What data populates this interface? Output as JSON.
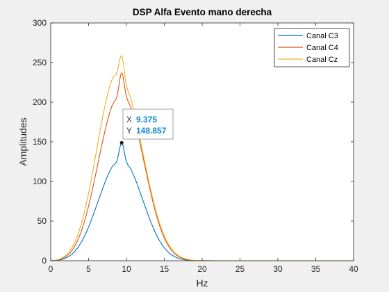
{
  "chart_data": {
    "type": "line",
    "title": "DSP Alfa Evento mano derecha",
    "xlabel": "Hz",
    "ylabel": "Amplitudes",
    "xlim": [
      0,
      40
    ],
    "ylim": [
      0,
      300
    ],
    "xticks": [
      0,
      5,
      10,
      15,
      20,
      25,
      30,
      35,
      40
    ],
    "yticks": [
      0,
      50,
      100,
      150,
      200,
      250,
      300
    ],
    "grid": false,
    "legend_position": "top-right",
    "x": [
      0,
      0.625,
      1.25,
      1.875,
      2.5,
      3.125,
      3.75,
      4.375,
      5,
      5.625,
      6.25,
      6.875,
      7.5,
      8.125,
      8.75,
      9.375,
      10,
      10.625,
      11.25,
      11.875,
      12.5,
      13.125,
      13.75,
      14.375,
      15,
      15.625,
      16.25,
      16.875,
      17.5,
      18.125,
      18.75,
      19.375,
      20,
      20.625,
      21.25,
      21.875,
      22.5,
      23.125,
      23.75,
      24.375,
      25,
      26.25,
      27.5,
      28.75,
      30,
      31.25,
      32.5,
      33.75,
      35,
      36.25,
      37.5,
      38.75,
      40
    ],
    "series": [
      {
        "name": "Canal C3",
        "color": "#0072BD",
        "values": [
          0.03,
          0.33,
          1.15,
          2.86,
          6.0,
          11.13,
          18.78,
          29.24,
          42.46,
          57.94,
          74.72,
          91.48,
          106.64,
          118.62,
          126.0,
          148.857,
          124.99,
          114.86,
          100.9,
          84.53,
          67.48,
          51.23,
          36.93,
          25.22,
          16.28,
          9.91,
          5.68,
          3.05,
          1.53,
          0.71,
          0.31,
          0.12,
          0.05,
          0.02,
          0.01,
          0,
          0,
          0,
          0,
          0,
          0,
          0,
          0,
          0,
          0,
          0,
          0,
          0,
          0,
          0,
          0,
          0,
          0
        ]
      },
      {
        "name": "Canal C4",
        "color": "#D95319",
        "values": [
          0.05,
          0.48,
          1.73,
          4.39,
          9.35,
          17.56,
          29.92,
          47.05,
          68.97,
          94.91,
          123.2,
          151.43,
          176.69,
          196.05,
          207.21,
          237.0,
          207.0,
          192.71,
          171.17,
          144.89,
          116.7,
          89.28,
          64.71,
          44.35,
          28.71,
          17.51,
          10.02,
          5.37,
          2.68,
          1.25,
          0.54,
          0.22,
          0.08,
          0.03,
          0.01,
          0,
          0,
          0,
          0,
          0,
          0,
          0,
          0,
          0,
          0,
          0,
          0,
          0,
          0,
          0,
          0,
          0,
          0
        ]
      },
      {
        "name": "Canal Cz",
        "color": "#EDB120",
        "values": [
          0.09,
          0.7,
          2.36,
          5.79,
          12.04,
          22.26,
          37.53,
          58.52,
          85.12,
          116.18,
          149.45,
          181.78,
          209.51,
          228.99,
          237.51,
          258.5,
          221.34,
          203.32,
          178.69,
          150.37,
          120.95,
          92.92,
          68.15,
          47.57,
          31.5,
          19.71,
          11.63,
          6.46,
          3.37,
          1.65,
          0.75,
          0.32,
          0.13,
          0.05,
          0.02,
          0.01,
          0,
          0,
          0,
          0,
          0,
          0,
          0,
          0,
          0,
          0,
          0,
          0,
          0,
          0,
          0,
          0,
          0
        ]
      }
    ],
    "datatip": {
      "series": "Canal C3",
      "x": 9.375,
      "y": 148.857,
      "x_label": "X",
      "y_label": "Y",
      "x_text": "9.375",
      "y_text": "148.857"
    }
  }
}
